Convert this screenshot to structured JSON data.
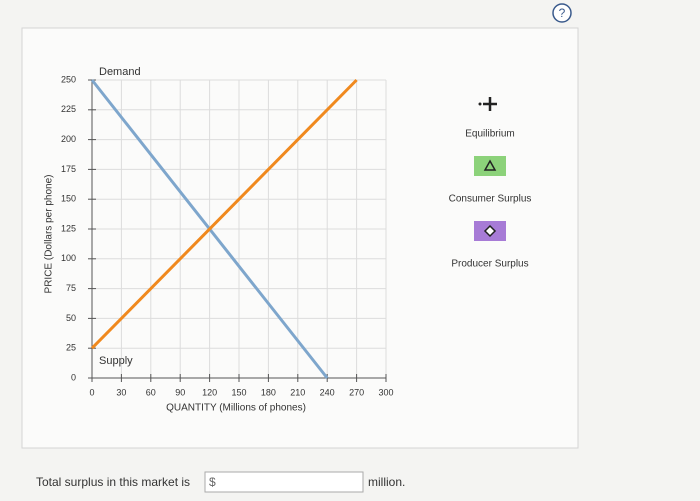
{
  "help": "?",
  "chart_data": {
    "type": "line",
    "xlabel": "QUANTITY (Millions of phones)",
    "ylabel": "PRICE (Dollars per phone)",
    "xlim": [
      0,
      300
    ],
    "ylim": [
      0,
      250
    ],
    "xticks": [
      0,
      30,
      60,
      90,
      120,
      150,
      180,
      210,
      240,
      270,
      300
    ],
    "yticks": [
      0,
      25,
      50,
      75,
      100,
      125,
      150,
      175,
      200,
      225,
      250
    ],
    "grid": true,
    "series": [
      {
        "name": "Demand",
        "color": "#7ea6cc",
        "x": [
          0,
          240
        ],
        "values": [
          250,
          0
        ]
      },
      {
        "name": "Supply",
        "color": "#f0891e",
        "x": [
          0,
          270
        ],
        "values": [
          25,
          250
        ]
      }
    ]
  },
  "tools": [
    {
      "label": "Equilibrium"
    },
    {
      "label": "Consumer Surplus"
    },
    {
      "label": "Producer Surplus"
    }
  ],
  "footer": {
    "prompt": "Total surplus in this market is",
    "currency": "$",
    "unit": "million."
  }
}
